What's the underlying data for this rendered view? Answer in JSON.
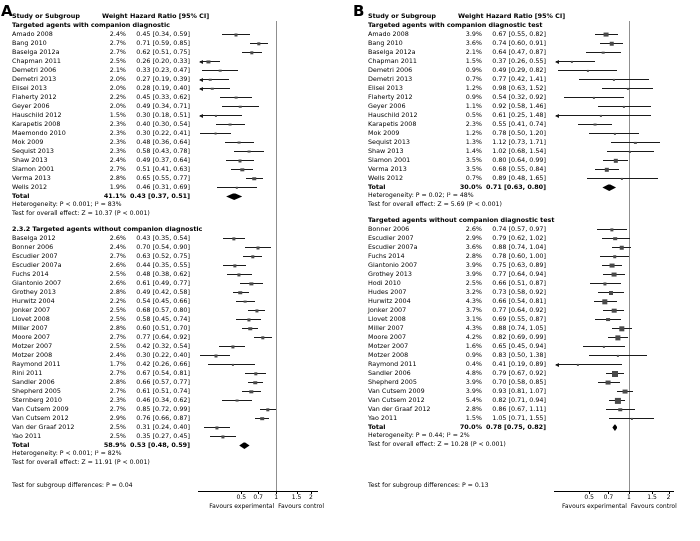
{
  "chart_data": {
    "type": "forest",
    "colors": {
      "marker": "#4a4a4a",
      "ci": "#1a1a1a",
      "diamond": "#000000",
      "vline": "#8f8f8f"
    },
    "panels": [
      {
        "label": "A",
        "columns": {
          "study": "Study or Subgroup",
          "weight": "Weight",
          "hr": "Hazard Ratio [95% CI]"
        },
        "axis": {
          "xmin": 0.22,
          "xmax": 2.3,
          "ticks": [
            0.5,
            0.7,
            1,
            1.5,
            2
          ],
          "favours_left": "Favours experimental",
          "favours_right": "Favours control"
        },
        "subgroups": [
          {
            "title": "Targeted agents with companion diagnostic",
            "rows": [
              [
                "Amado 2008",
                "2.4%",
                0.45,
                0.34,
                0.59
              ],
              [
                "Bang 2010",
                "2.7%",
                0.71,
                0.59,
                0.85
              ],
              [
                "Baselga 2012a",
                "2.7%",
                0.62,
                0.51,
                0.75
              ],
              [
                "Chapman 2011",
                "2.5%",
                0.26,
                0.2,
                0.33
              ],
              [
                "Demetri 2006",
                "2.1%",
                0.33,
                0.23,
                0.47
              ],
              [
                "Demetri 2013",
                "2.0%",
                0.27,
                0.19,
                0.39
              ],
              [
                "Elisei 2013",
                "2.0%",
                0.28,
                0.19,
                0.4
              ],
              [
                "Flaherty 2012",
                "2.2%",
                0.45,
                0.33,
                0.62
              ],
              [
                "Geyer 2006",
                "2.0%",
                0.49,
                0.34,
                0.71
              ],
              [
                "Hauschild 2012",
                "1.5%",
                0.3,
                0.18,
                0.51
              ],
              [
                "Karapetis 2008",
                "2.3%",
                0.4,
                0.3,
                0.54
              ],
              [
                "Maemondo 2010",
                "2.3%",
                0.3,
                0.22,
                0.41
              ],
              [
                "Mok 2009",
                "2.3%",
                0.48,
                0.36,
                0.64
              ],
              [
                "Sequist 2013",
                "2.3%",
                0.58,
                0.43,
                0.78
              ],
              [
                "Shaw 2013",
                "2.4%",
                0.49,
                0.37,
                0.64
              ],
              [
                "Slamon 2001",
                "2.7%",
                0.51,
                0.41,
                0.63
              ],
              [
                "Verma 2013",
                "2.8%",
                0.65,
                0.55,
                0.77
              ],
              [
                "Wells 2012",
                "1.9%",
                0.46,
                0.31,
                0.69
              ]
            ],
            "total": [
              "Total",
              "41.1%",
              0.43,
              0.37,
              0.51
            ],
            "heterogeneity": "Heterogeneity: P < 0.001; I² = 83%",
            "overall": "Test for overall effect: Z = 10.37 (P < 0.001)"
          },
          {
            "title": "2.3.2 Targeted agents without companion diagnostic",
            "rows": [
              [
                "Baselga 2012",
                "2.6%",
                0.43,
                0.35,
                0.54
              ],
              [
                "Bonner 2006",
                "2.4%",
                0.7,
                0.54,
                0.9
              ],
              [
                "Escudier 2007",
                "2.7%",
                0.63,
                0.52,
                0.75
              ],
              [
                "Escudier 2007a",
                "2.6%",
                0.44,
                0.35,
                0.55
              ],
              [
                "Fuchs 2014",
                "2.5%",
                0.48,
                0.38,
                0.62
              ],
              [
                "Giantonio 2007",
                "2.6%",
                0.61,
                0.49,
                0.77
              ],
              [
                "Grothey 2013",
                "2.8%",
                0.49,
                0.42,
                0.58
              ],
              [
                "Hurwitz 2004",
                "2.2%",
                0.54,
                0.45,
                0.66
              ],
              [
                "Jonker 2007",
                "2.5%",
                0.68,
                0.57,
                0.8
              ],
              [
                "Llovet 2008",
                "2.5%",
                0.58,
                0.45,
                0.74
              ],
              [
                "Miller 2007",
                "2.8%",
                0.6,
                0.51,
                0.7
              ],
              [
                "Moore 2007",
                "2.7%",
                0.77,
                0.64,
                0.92
              ],
              [
                "Motzer 2007",
                "2.5%",
                0.42,
                0.32,
                0.54
              ],
              [
                "Motzer 2008",
                "2.4%",
                0.3,
                0.22,
                0.4
              ],
              [
                "Raymond 2011",
                "1.7%",
                0.42,
                0.26,
                0.66
              ],
              [
                "Rini 2011",
                "2.7%",
                0.67,
                0.54,
                0.81
              ],
              [
                "Sandler 2006",
                "2.8%",
                0.66,
                0.57,
                0.77
              ],
              [
                "Shepherd 2005",
                "2.7%",
                0.61,
                0.51,
                0.74
              ],
              [
                "Sternberg 2010",
                "2.3%",
                0.46,
                0.34,
                0.62
              ],
              [
                "Van Cutsem 2009",
                "2.7%",
                0.85,
                0.72,
                0.99
              ],
              [
                "Van Cutsem 2012",
                "2.9%",
                0.76,
                0.66,
                0.87
              ],
              [
                "Van der Graaf 2012",
                "2.5%",
                0.31,
                0.24,
                0.4
              ],
              [
                "Yao 2011",
                "2.5%",
                0.35,
                0.27,
                0.45
              ]
            ],
            "total": [
              "Total",
              "58.9%",
              0.53,
              0.48,
              0.59
            ],
            "heterogeneity": "Heterogeneity: P < 0.001; I² = 82%",
            "overall": "Test for overall effect: Z = 11.91 (P < 0.001)"
          }
        ],
        "subgroup_difference": "Test for subgroup differences: P = 0.04"
      },
      {
        "label": "B",
        "columns": {
          "study": "Study or Subgroup",
          "weight": "Weight",
          "hr": "Hazard Ratio [95% CI]"
        },
        "axis": {
          "xmin": 0.28,
          "xmax": 2.2,
          "ticks": [
            0.5,
            0.7,
            1,
            1.5,
            2
          ],
          "favours_left": "Favours experimental",
          "favours_right": "Favours control"
        },
        "subgroups": [
          {
            "title": "Targeted agents with companion diagnostic test",
            "rows": [
              [
                "Amado 2008",
                "3.9%",
                0.67,
                0.55,
                0.82
              ],
              [
                "Bang 2010",
                "3.6%",
                0.74,
                0.6,
                0.91
              ],
              [
                "Baselga 2012a",
                "2.1%",
                0.64,
                0.47,
                0.87
              ],
              [
                "Chapman 2011",
                "1.5%",
                0.37,
                0.26,
                0.55
              ],
              [
                "Demetri 2006",
                "0.9%",
                0.49,
                0.29,
                0.82
              ],
              [
                "Demetri 2013",
                "0.7%",
                0.77,
                0.42,
                1.41
              ],
              [
                "Elisei 2013",
                "1.2%",
                0.98,
                0.63,
                1.52
              ],
              [
                "Flaherty 2012",
                "0.9%",
                0.54,
                0.32,
                0.92
              ],
              [
                "Geyer 2006",
                "1.1%",
                0.92,
                0.58,
                1.46
              ],
              [
                "Hauschild 2012",
                "0.5%",
                0.61,
                0.25,
                1.48
              ],
              [
                "Karapetis 2008",
                "2.3%",
                0.55,
                0.41,
                0.74
              ],
              [
                "Mok 2009",
                "1.2%",
                0.78,
                0.5,
                1.2
              ],
              [
                "Sequist 2013",
                "1.3%",
                1.12,
                0.73,
                1.71
              ],
              [
                "Shaw 2013",
                "1.4%",
                1.02,
                0.68,
                1.54
              ],
              [
                "Slamon 2001",
                "3.5%",
                0.8,
                0.64,
                0.99
              ],
              [
                "Verma 2013",
                "3.5%",
                0.68,
                0.55,
                0.84
              ],
              [
                "Wells 2012",
                "0.7%",
                0.89,
                0.48,
                1.65
              ]
            ],
            "total": [
              "Total",
              "30.0%",
              0.71,
              0.63,
              0.8
            ],
            "heterogeneity": "Heterogeneity: P = 0.02; I² = 48%",
            "overall": "Test for overall effect: Z = 5.69 (P < 0.001)"
          },
          {
            "title": "Targeted agents without companion diagnostic test",
            "rows": [
              [
                "Bonner 2006",
                "2.6%",
                0.74,
                0.57,
                0.97
              ],
              [
                "Escudier 2007",
                "2.9%",
                0.79,
                0.62,
                1.02
              ],
              [
                "Escudier 2007a",
                "3.6%",
                0.88,
                0.74,
                1.04
              ],
              [
                "Fuchs 2014",
                "2.8%",
                0.78,
                0.6,
                1.0
              ],
              [
                "Giantonio 2007",
                "3.9%",
                0.75,
                0.63,
                0.89
              ],
              [
                "Grothey 2013",
                "3.9%",
                0.77,
                0.64,
                0.94
              ],
              [
                "Hodi 2010",
                "2.5%",
                0.66,
                0.51,
                0.87
              ],
              [
                "Hudes 2007",
                "3.2%",
                0.73,
                0.58,
                0.92
              ],
              [
                "Hurwitz 2004",
                "4.3%",
                0.66,
                0.54,
                0.81
              ],
              [
                "Jonker 2007",
                "3.7%",
                0.77,
                0.64,
                0.92
              ],
              [
                "Llovet 2008",
                "3.1%",
                0.69,
                0.55,
                0.87
              ],
              [
                "Miller 2007",
                "4.3%",
                0.88,
                0.74,
                1.05
              ],
              [
                "Moore 2007",
                "4.2%",
                0.82,
                0.69,
                0.99
              ],
              [
                "Motzer 2007",
                "1.6%",
                0.65,
                0.45,
                0.94
              ],
              [
                "Motzer 2008",
                "0.9%",
                0.83,
                0.5,
                1.38
              ],
              [
                "Raymond 2011",
                "0.4%",
                0.41,
                0.19,
                0.89
              ],
              [
                "Sandler 2006",
                "4.8%",
                0.79,
                0.67,
                0.92
              ],
              [
                "Shepherd 2005",
                "3.9%",
                0.7,
                0.58,
                0.85
              ],
              [
                "Van Cutsem 2009",
                "3.9%",
                0.93,
                0.81,
                1.07
              ],
              [
                "Van Cutsem 2012",
                "5.4%",
                0.82,
                0.71,
                0.94
              ],
              [
                "Van der Graaf 2012",
                "2.8%",
                0.86,
                0.67,
                1.11
              ],
              [
                "Yao 2011",
                "1.5%",
                1.05,
                0.71,
                1.55
              ]
            ],
            "total": [
              "Total",
              "70.0%",
              0.78,
              0.75,
              0.82
            ],
            "heterogeneity": "Heterogeneity: P = 0.44; I² = 2%",
            "overall": "Test for overall effect: Z = 10.28 (P < 0.001)"
          }
        ],
        "subgroup_difference": "Test for subgroup differences: P = 0.13"
      }
    ]
  }
}
